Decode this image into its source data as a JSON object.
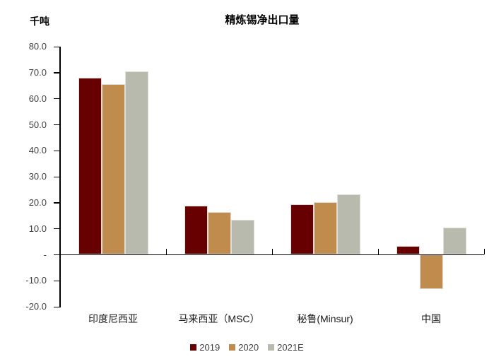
{
  "chart_data": {
    "type": "bar",
    "title": "精炼锡净出口量",
    "ylabel": "千吨",
    "categories": [
      "印度尼西亚",
      "马来西亚（MSC）",
      "秘鲁(Minsur)",
      "中国"
    ],
    "series": [
      {
        "name": "2019",
        "color": "#670001",
        "values": [
          68.0,
          18.8,
          19.4,
          3.2
        ]
      },
      {
        "name": "2020",
        "color": "#C08C4E",
        "values": [
          65.4,
          16.4,
          20.1,
          -13.3
        ]
      },
      {
        "name": "2021E",
        "color": "#B9BAAE",
        "values": [
          70.3,
          13.4,
          23.2,
          10.4
        ]
      }
    ],
    "ylim": [
      -20,
      80
    ],
    "ytick_step": 10,
    "ytick_labels": [
      "80.0",
      "70.0",
      "60.0",
      "50.0",
      "40.0",
      "30.0",
      "20.0",
      "10.0",
      "-",
      "-10.0",
      "-20.0"
    ],
    "legend_position": "bottom",
    "grid": false,
    "axis_color": "#000000",
    "tick_label_color": "#404040"
  }
}
